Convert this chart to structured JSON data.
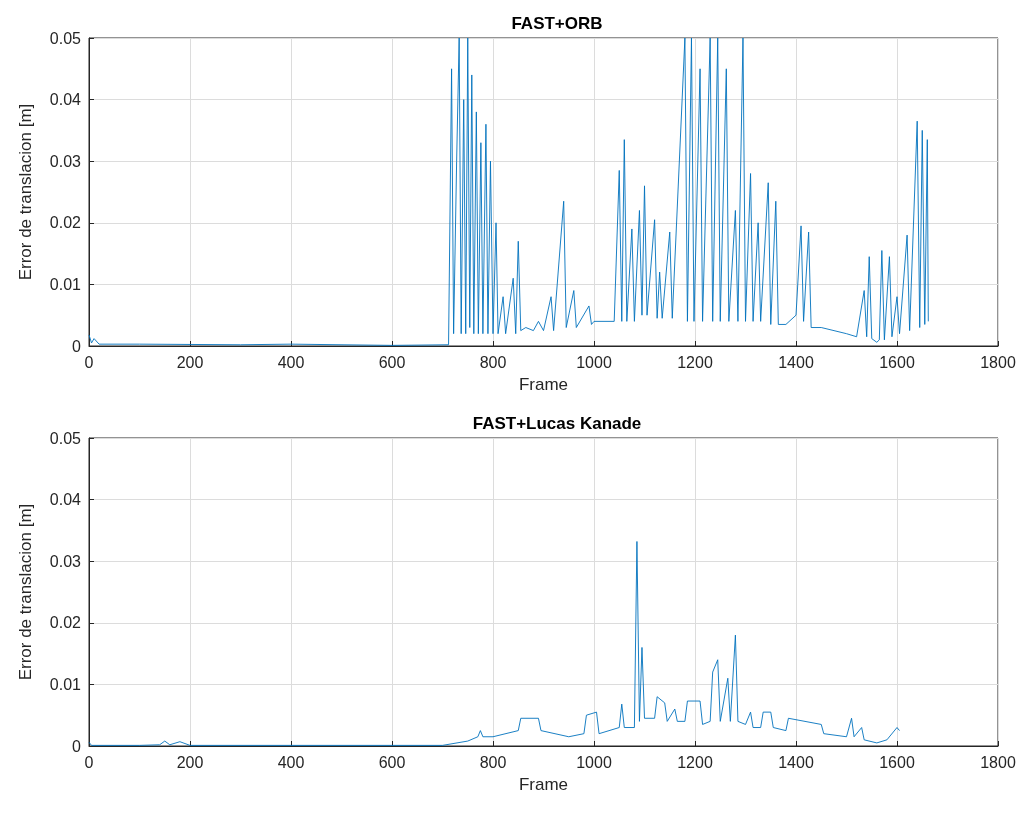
{
  "chart_data": [
    {
      "type": "line",
      "title": "FAST+ORB",
      "xlabel": "Frame",
      "ylabel": "Error de translacion [m]",
      "color": "#0072bd",
      "xlim": [
        0,
        1800
      ],
      "ylim": [
        0,
        0.05
      ],
      "xticks": [
        0,
        200,
        400,
        600,
        800,
        1000,
        1200,
        1400,
        1600,
        1800
      ],
      "yticks": [
        0,
        0.01,
        0.02,
        0.03,
        0.04,
        0.05
      ],
      "grid": true,
      "x": [
        0,
        5,
        10,
        20,
        100,
        300,
        400,
        600,
        712,
        718,
        722,
        728,
        733,
        737,
        742,
        746,
        750,
        754,
        758,
        762,
        767,
        771,
        776,
        780,
        786,
        790,
        795,
        800,
        806,
        810,
        820,
        825,
        840,
        845,
        850,
        855,
        865,
        880,
        890,
        900,
        915,
        920,
        940,
        945,
        960,
        965,
        990,
        995,
        1000,
        1040,
        1050,
        1055,
        1060,
        1065,
        1075,
        1080,
        1090,
        1095,
        1100,
        1105,
        1120,
        1125,
        1130,
        1135,
        1150,
        1155,
        1180,
        1185,
        1193,
        1198,
        1210,
        1215,
        1230,
        1235,
        1245,
        1250,
        1262,
        1267,
        1280,
        1285,
        1295,
        1300,
        1310,
        1315,
        1325,
        1330,
        1345,
        1350,
        1360,
        1365,
        1380,
        1400,
        1410,
        1415,
        1425,
        1430,
        1450,
        1500,
        1520,
        1535,
        1540,
        1545,
        1550,
        1560,
        1565,
        1570,
        1575,
        1585,
        1590,
        1600,
        1605,
        1620,
        1625,
        1640,
        1645,
        1650,
        1655,
        1660,
        1662
      ],
      "values": [
        0.0018,
        0.0005,
        0.0012,
        0.0003,
        0.0003,
        0.0002,
        0.0003,
        0.0001,
        0.0002,
        0.045,
        0.002,
        0.03,
        0.05,
        0.002,
        0.04,
        0.002,
        0.05,
        0.003,
        0.044,
        0.002,
        0.038,
        0.002,
        0.033,
        0.002,
        0.036,
        0.002,
        0.03,
        0.002,
        0.02,
        0.002,
        0.008,
        0.002,
        0.011,
        0.002,
        0.017,
        0.0025,
        0.003,
        0.0025,
        0.004,
        0.0025,
        0.008,
        0.0025,
        0.0235,
        0.003,
        0.009,
        0.003,
        0.0065,
        0.0035,
        0.004,
        0.004,
        0.0285,
        0.004,
        0.0335,
        0.004,
        0.019,
        0.004,
        0.022,
        0.005,
        0.026,
        0.005,
        0.0205,
        0.0045,
        0.012,
        0.0045,
        0.0185,
        0.0045,
        0.05,
        0.004,
        0.05,
        0.004,
        0.045,
        0.004,
        0.05,
        0.004,
        0.05,
        0.004,
        0.045,
        0.004,
        0.022,
        0.004,
        0.05,
        0.004,
        0.028,
        0.004,
        0.02,
        0.004,
        0.0265,
        0.0035,
        0.0235,
        0.0035,
        0.0035,
        0.005,
        0.0195,
        0.004,
        0.0185,
        0.003,
        0.003,
        0.002,
        0.0015,
        0.009,
        0.0015,
        0.0145,
        0.0012,
        0.0006,
        0.001,
        0.0155,
        0.001,
        0.0145,
        0.0015,
        0.008,
        0.002,
        0.018,
        0.0025,
        0.0365,
        0.003,
        0.035,
        0.0035,
        0.0335,
        0.004
      ]
    },
    {
      "type": "line",
      "title": "FAST+Lucas Kanade",
      "xlabel": "Frame",
      "ylabel": "Error de translacion [m]",
      "color": "#0072bd",
      "xlim": [
        0,
        1800
      ],
      "ylim": [
        0,
        0.05
      ],
      "xticks": [
        0,
        200,
        400,
        600,
        800,
        1000,
        1200,
        1400,
        1600,
        1800
      ],
      "yticks": [
        0,
        0.01,
        0.02,
        0.03,
        0.04,
        0.05
      ],
      "grid": true,
      "x": [
        0,
        5,
        100,
        140,
        150,
        160,
        180,
        200,
        400,
        700,
        750,
        770,
        775,
        780,
        800,
        850,
        855,
        890,
        895,
        950,
        980,
        985,
        1005,
        1010,
        1050,
        1055,
        1060,
        1080,
        1085,
        1090,
        1095,
        1100,
        1120,
        1125,
        1140,
        1145,
        1160,
        1165,
        1180,
        1185,
        1210,
        1215,
        1230,
        1235,
        1245,
        1250,
        1265,
        1270,
        1280,
        1285,
        1300,
        1310,
        1315,
        1330,
        1335,
        1350,
        1355,
        1380,
        1385,
        1450,
        1455,
        1500,
        1510,
        1515,
        1530,
        1535,
        1560,
        1580,
        1600,
        1605
      ],
      "values": [
        0.0006,
        0.0001,
        0.0001,
        0.0002,
        0.0008,
        0.0002,
        0.0007,
        0.0001,
        0.0001,
        0.0001,
        0.0008,
        0.0015,
        0.0025,
        0.0015,
        0.0015,
        0.0025,
        0.0045,
        0.0045,
        0.0025,
        0.0015,
        0.002,
        0.005,
        0.0055,
        0.002,
        0.003,
        0.0068,
        0.003,
        0.003,
        0.0332,
        0.004,
        0.016,
        0.0045,
        0.0045,
        0.008,
        0.007,
        0.004,
        0.006,
        0.004,
        0.004,
        0.0073,
        0.0073,
        0.0035,
        0.004,
        0.012,
        0.014,
        0.004,
        0.011,
        0.004,
        0.018,
        0.004,
        0.0035,
        0.0055,
        0.003,
        0.003,
        0.0055,
        0.0055,
        0.003,
        0.0025,
        0.0045,
        0.0035,
        0.002,
        0.0015,
        0.0045,
        0.0015,
        0.003,
        0.001,
        0.0005,
        0.001,
        0.003,
        0.0025
      ]
    }
  ]
}
